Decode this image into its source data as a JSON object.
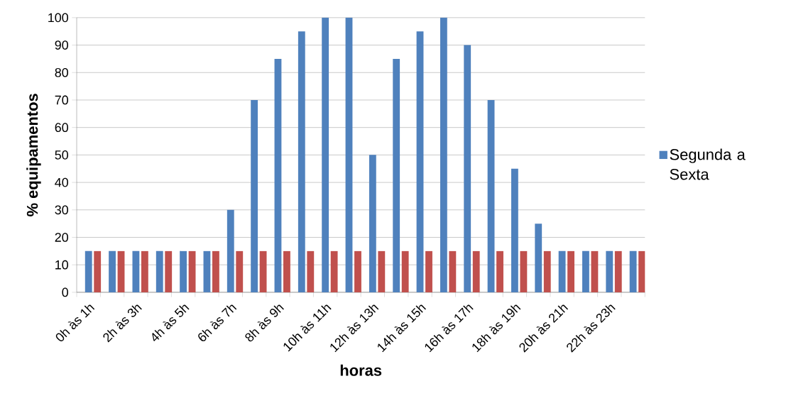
{
  "chart_data": {
    "type": "bar",
    "xlabel": "horas",
    "ylabel": "% equipamentos",
    "categories": [
      "0h às 1h",
      null,
      "2h às 3h",
      null,
      "4h às 5h",
      null,
      "6h às 7h",
      null,
      "8h às 9h",
      null,
      "10h às 11h",
      null,
      "12h às 13h",
      null,
      "14h às 15h",
      null,
      "16h às 17h",
      null,
      "18h às 19h",
      null,
      "20h às 21h",
      null,
      "22h às 23h",
      null
    ],
    "series": [
      {
        "name": "Segunda a Sexta",
        "color": "#4f81bd",
        "values": [
          15,
          15,
          15,
          15,
          15,
          15,
          30,
          70,
          85,
          95,
          100,
          100,
          50,
          85,
          95,
          100,
          90,
          70,
          45,
          25,
          15,
          15,
          15,
          15
        ]
      },
      {
        "color": "#c0504d",
        "values": [
          15,
          15,
          15,
          15,
          15,
          15,
          15,
          15,
          15,
          15,
          15,
          15,
          15,
          15,
          15,
          15,
          15,
          15,
          15,
          15,
          15,
          15,
          15,
          15
        ]
      }
    ],
    "ylim": [
      0,
      100
    ],
    "yticks": [
      0,
      10,
      20,
      30,
      40,
      50,
      60,
      70,
      80,
      90,
      100
    ],
    "grid": "y",
    "legend": "right"
  }
}
